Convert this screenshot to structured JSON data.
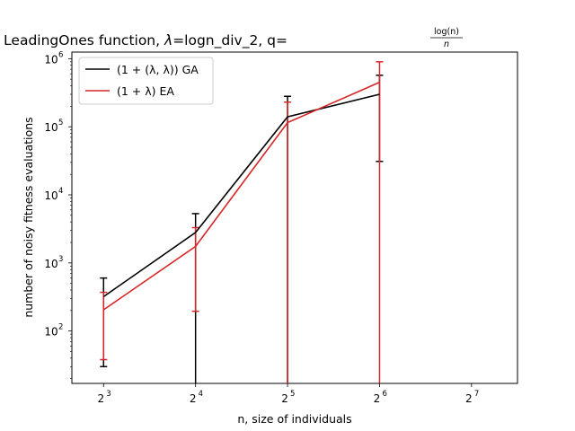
{
  "chart_data": {
    "type": "line",
    "title": {
      "prefix": "LeadingOnes function, ",
      "lambda_symbol": "λ",
      "lambda_value": "=logn_div_2, q=",
      "fraction_numerator": "log(n)",
      "fraction_denominator": "n"
    },
    "xlabel": "n, size of individuals",
    "ylabel": "number of noisy fitness evaluations",
    "x_scale": "log2",
    "y_scale": "log10",
    "xlim": [
      6.3,
      181
    ],
    "ylim": [
      17,
      1250000
    ],
    "x_ticks": [
      {
        "value": 8,
        "base": "2",
        "exp": "3"
      },
      {
        "value": 16,
        "base": "2",
        "exp": "4"
      },
      {
        "value": 32,
        "base": "2",
        "exp": "5"
      },
      {
        "value": 64,
        "base": "2",
        "exp": "6"
      },
      {
        "value": 128,
        "base": "2",
        "exp": "7"
      }
    ],
    "y_ticks": [
      {
        "value": 100,
        "base": "10",
        "exp": "2"
      },
      {
        "value": 1000,
        "base": "10",
        "exp": "3"
      },
      {
        "value": 10000,
        "base": "10",
        "exp": "4"
      },
      {
        "value": 100000,
        "base": "10",
        "exp": "5"
      },
      {
        "value": 1000000,
        "base": "10",
        "exp": "6"
      }
    ],
    "grid": false,
    "legend_position": "top-left",
    "series": [
      {
        "name": "(1 + (λ, λ)) GA",
        "color": "#000000",
        "points": [
          {
            "x": 8,
            "y": 320,
            "err_low": 30,
            "err_high": 600
          },
          {
            "x": 16,
            "y": 2800,
            "err_low": null,
            "err_high": 5300
          },
          {
            "x": 32,
            "y": 140000,
            "err_low": null,
            "err_high": 280000
          },
          {
            "x": 64,
            "y": 300000,
            "err_low": 31000,
            "err_high": 570000
          }
        ]
      },
      {
        "name": "(1 + λ) EA",
        "color": "#d62728",
        "points": [
          {
            "x": 8,
            "y": 205,
            "err_low": 38,
            "err_high": 370
          },
          {
            "x": 16,
            "y": 1750,
            "err_low": 195,
            "err_high": 3300
          },
          {
            "x": 32,
            "y": 115000,
            "err_low": null,
            "err_high": 230000
          },
          {
            "x": 64,
            "y": 450000,
            "err_low": null,
            "err_high": 900000
          }
        ]
      }
    ]
  }
}
